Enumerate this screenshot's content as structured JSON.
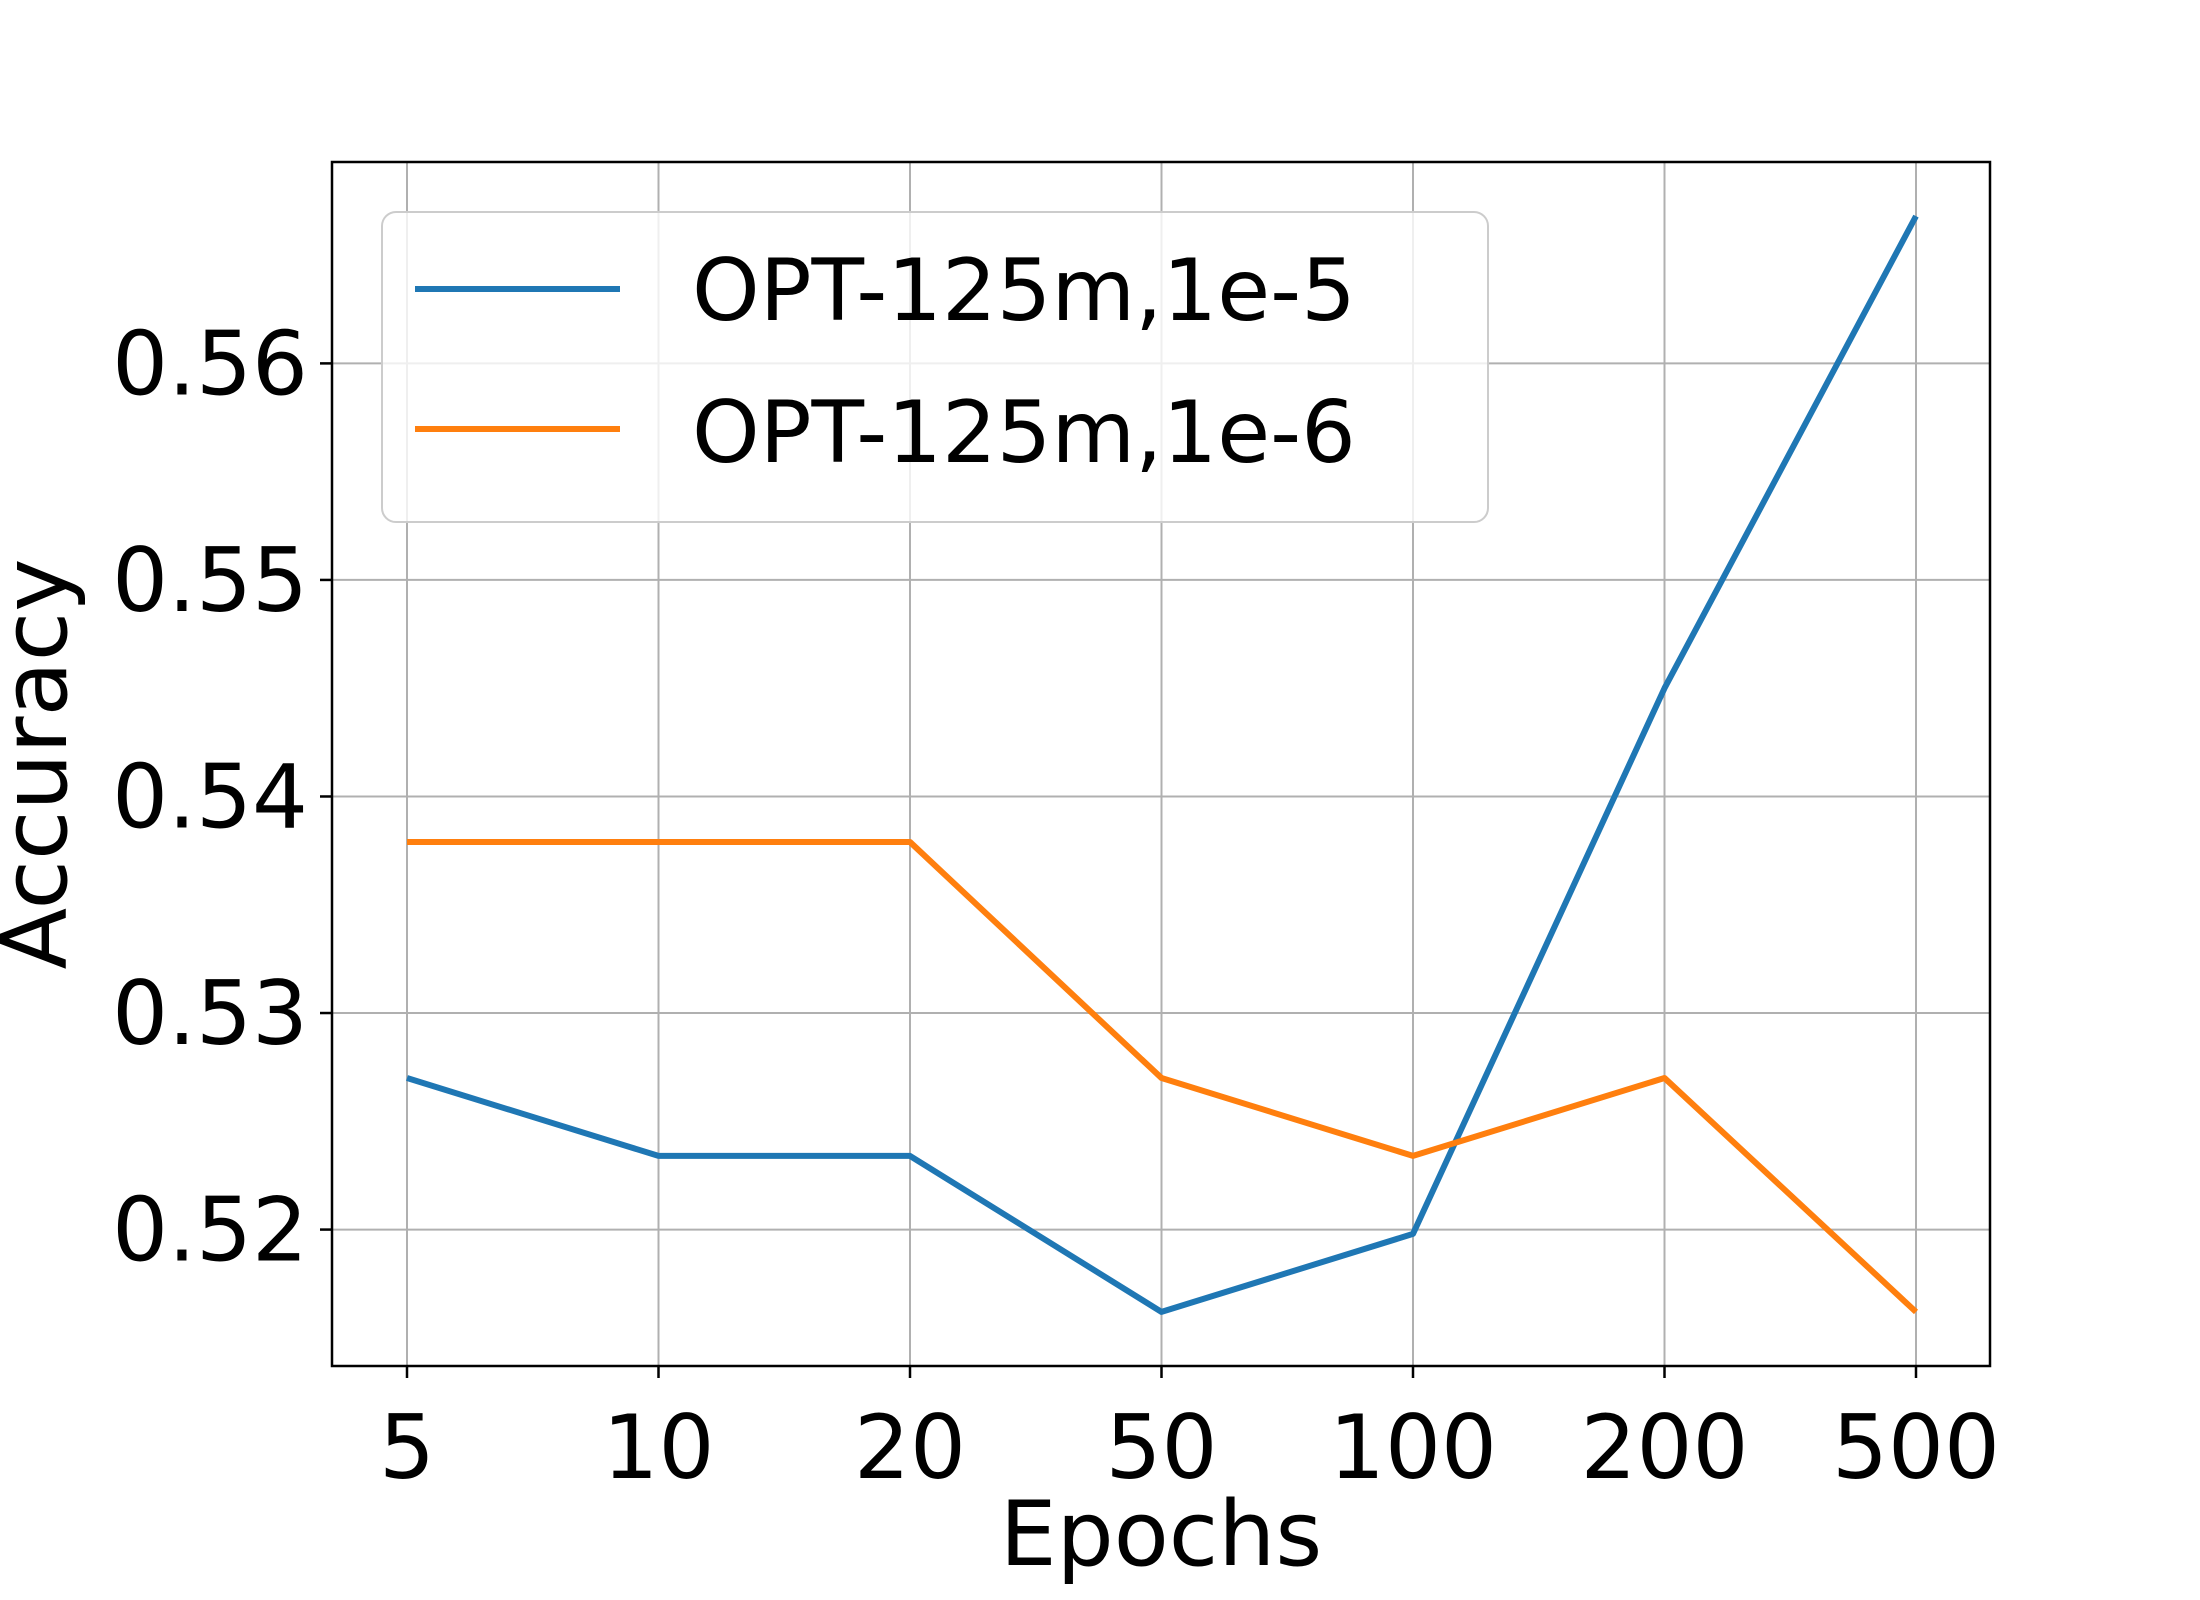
{
  "chart_data": {
    "type": "line",
    "xlabel": "Epochs",
    "ylabel": "Accuracy",
    "categories": [
      "5",
      "10",
      "20",
      "50",
      "100",
      "200",
      "500"
    ],
    "yticks": [
      "0.52",
      "0.53",
      "0.54",
      "0.55",
      "0.56"
    ],
    "ylim": [
      0.5137,
      0.5693
    ],
    "grid": true,
    "legend_position": "upper-left",
    "series": [
      {
        "name": "OPT-125m,1e-5",
        "color": "#1f77b4",
        "values": [
          0.527,
          0.5234,
          0.5234,
          0.5162,
          0.5198,
          0.545,
          0.5668
        ]
      },
      {
        "name": "OPT-125m,1e-6",
        "color": "#ff7f0e",
        "values": [
          0.5379,
          0.5379,
          0.5379,
          0.527,
          0.5234,
          0.527,
          0.5162
        ]
      }
    ]
  }
}
